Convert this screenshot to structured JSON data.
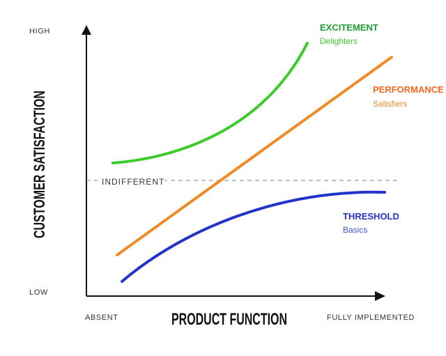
{
  "axes": {
    "y_title": "CUSTOMER SATISFACTION",
    "x_title": "PRODUCT FUNCTION",
    "y_high": "HIGH",
    "y_low": "LOW",
    "x_start": "ABSENT",
    "x_end": "FULLY IMPLEMENTED"
  },
  "baseline": {
    "label": "INDIFFERENT"
  },
  "curves": {
    "excitement": {
      "title": "EXCITEMENT",
      "subtitle": "Delighters",
      "color": "#3ccc2a",
      "title_color": "#1f9c33"
    },
    "performance": {
      "title": "PERFORMANCE",
      "subtitle": "Satisfiers",
      "color": "#f08a24",
      "title_color": "#f26a1b"
    },
    "threshold": {
      "title": "THRESHOLD",
      "subtitle": "Basics",
      "color": "#2233cc",
      "title_color": "#2233cc"
    }
  }
}
